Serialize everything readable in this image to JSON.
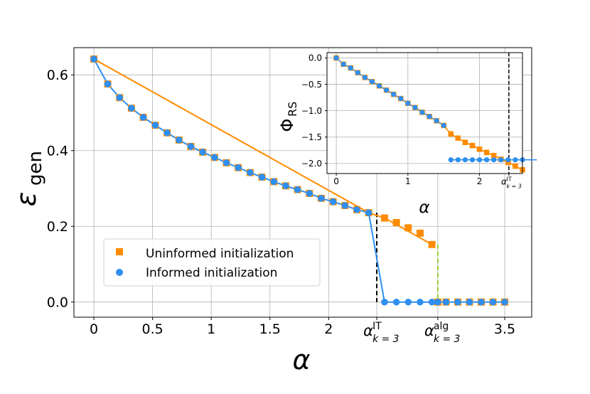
{
  "chart_data": [
    {
      "type": "scatter",
      "title": "",
      "xlabel": "α",
      "ylabel": "ε",
      "ylabel_sub": "gen",
      "xlim": [
        -0.17,
        3.73
      ],
      "ylim": [
        -0.04,
        0.672
      ],
      "xticks": [
        {
          "v": 0,
          "label": "0"
        },
        {
          "v": 0.5,
          "label": "0.5"
        },
        {
          "v": 1,
          "label": "1"
        },
        {
          "v": 1.5,
          "label": "1.5"
        },
        {
          "v": 2,
          "label": "2"
        },
        {
          "v": 3.5,
          "label": "3.5"
        }
      ],
      "yticks": [
        {
          "v": 0,
          "label": "0.0"
        },
        {
          "v": 0.2,
          "label": "0.2"
        },
        {
          "v": 0.4,
          "label": "0.4"
        },
        {
          "v": 0.6,
          "label": "0.6"
        }
      ],
      "grid": true,
      "legend_position": "lower-left",
      "special_ticks": [
        {
          "v": 2.41,
          "base": "α",
          "sup": "IT",
          "sub": "k = 3"
        },
        {
          "v": 2.93,
          "base": "α",
          "sup": "alg",
          "sub": "k = 3"
        }
      ],
      "vlines": [
        {
          "x": 2.41,
          "y_from": 0,
          "y_to": 0.236,
          "color": "#000000",
          "style": "dashed"
        },
        {
          "x": 2.93,
          "y_from": 0,
          "y_to": 0.152,
          "color": "#9acd32",
          "style": "dashed"
        }
      ],
      "series": [
        {
          "name": "Uninformed initialization",
          "marker": "square",
          "color": "#ff8c00",
          "x": [
            0,
            0.118,
            0.219,
            0.32,
            0.421,
            0.523,
            0.624,
            0.725,
            0.826,
            0.927,
            1.028,
            1.129,
            1.23,
            1.331,
            1.432,
            1.533,
            1.634,
            1.735,
            1.836,
            1.937,
            2.038,
            2.139,
            2.24,
            2.341,
            2.41,
            2.476,
            2.577,
            2.678,
            2.779,
            2.88,
            2.93,
            3.0,
            3.1,
            3.2,
            3.3,
            3.4,
            3.5
          ],
          "y": [
            0.642,
            0.576,
            0.54,
            0.512,
            0.488,
            0.467,
            0.447,
            0.428,
            0.411,
            0.396,
            0.382,
            0.368,
            0.355,
            0.342,
            0.33,
            0.318,
            0.307,
            0.297,
            0.287,
            0.274,
            0.265,
            0.255,
            0.244,
            0.236,
            null,
            0.222,
            0.21,
            0.196,
            0.182,
            0.152,
            0.0,
            0.0,
            0.0,
            0.0,
            0.0,
            0.0,
            0.0
          ],
          "line": [
            [
              0,
              0.642
            ],
            [
              2.341,
              0.236
            ],
            [
              2.476,
              0.222
            ],
            [
              2.88,
              0.152
            ]
          ]
        },
        {
          "name": "Informed initialization",
          "marker": "circle",
          "color": "#2e8ff0",
          "x": [
            0,
            0.118,
            0.219,
            0.32,
            0.421,
            0.523,
            0.624,
            0.725,
            0.826,
            0.927,
            1.028,
            1.129,
            1.23,
            1.331,
            1.432,
            1.533,
            1.634,
            1.735,
            1.836,
            1.937,
            2.038,
            2.139,
            2.24,
            2.341,
            2.476,
            2.577,
            2.678,
            2.779,
            2.88,
            2.93,
            3.0,
            3.1,
            3.2,
            3.3,
            3.4,
            3.5
          ],
          "y": [
            0.642,
            0.576,
            0.54,
            0.512,
            0.488,
            0.467,
            0.447,
            0.428,
            0.411,
            0.396,
            0.382,
            0.368,
            0.355,
            0.342,
            0.33,
            0.318,
            0.307,
            0.297,
            0.287,
            0.274,
            0.265,
            0.255,
            0.244,
            0.236,
            0.0,
            0.0,
            0.0,
            0.0,
            0.0,
            0.0,
            0.0,
            0.0,
            0.0,
            0.0,
            0.0,
            0.0
          ]
        }
      ]
    },
    {
      "type": "scatter",
      "title": "",
      "inset": true,
      "xlabel": "α",
      "ylabel": "Φ",
      "ylabel_sub": "RS",
      "xlim": [
        -0.13,
        2.6
      ],
      "ylim": [
        -2.19,
        0.1
      ],
      "xticks": [
        {
          "v": 0,
          "label": "0"
        },
        {
          "v": 1,
          "label": "1"
        },
        {
          "v": 2,
          "label": "2"
        }
      ],
      "yticks": [
        {
          "v": 0,
          "label": "0.0"
        },
        {
          "v": -0.5,
          "label": "−0.5"
        },
        {
          "v": -1,
          "label": "−1.0"
        },
        {
          "v": -1.5,
          "label": "−1.5"
        },
        {
          "v": -2,
          "label": "−2.0"
        }
      ],
      "grid": true,
      "special_ticks": [
        {
          "v": 2.41,
          "base": "α",
          "sup": "IT",
          "sub": "k = 3"
        }
      ],
      "vlines": [
        {
          "x": 2.41,
          "color": "#000000",
          "style": "dashed"
        }
      ],
      "series": [
        {
          "name": "Uninformed initialization",
          "marker": "square",
          "color": "#ff8c00",
          "x": [
            0,
            0.1,
            0.2,
            0.3,
            0.4,
            0.5,
            0.6,
            0.7,
            0.8,
            0.9,
            1.0,
            1.1,
            1.2,
            1.3,
            1.4,
            1.5,
            1.6,
            1.7,
            1.8,
            1.9,
            2.0,
            2.1,
            2.2,
            2.3,
            2.4,
            2.5
          ],
          "y": [
            0.0,
            -0.12,
            -0.19,
            -0.28,
            -0.37,
            -0.45,
            -0.53,
            -0.61,
            -0.69,
            -0.77,
            -0.86,
            -0.94,
            -1.03,
            -1.11,
            -1.19,
            -1.28,
            -1.44,
            -1.52,
            -1.6,
            -1.66,
            -1.73,
            -1.79,
            -1.85,
            -1.92,
            -1.98,
            -2.05
          ],
          "extra": {
            "x": [
              2.6
            ],
            "y": [
              -2.12
            ]
          }
        },
        {
          "name": "Informed initialization",
          "marker": "circle",
          "color": "#2e8ff0",
          "x": [
            0,
            0.1,
            0.2,
            0.3,
            0.4,
            0.5,
            0.6,
            0.7,
            0.8,
            0.9,
            1.0,
            1.1,
            1.2,
            1.3,
            1.4,
            1.5,
            1.6,
            1.7,
            1.8,
            1.9,
            2.0,
            2.1,
            2.2,
            2.3,
            2.4,
            2.5,
            2.6,
            2.7,
            2.8
          ],
          "y": [
            0.0,
            -0.12,
            -0.19,
            -0.28,
            -0.37,
            -0.45,
            -0.53,
            -0.61,
            -0.69,
            -0.77,
            -0.86,
            -0.94,
            -1.03,
            -1.11,
            -1.19,
            -1.28,
            -1.93,
            -1.93,
            -1.93,
            -1.93,
            -1.93,
            -1.93,
            -1.93,
            -1.93,
            -1.93,
            -1.93,
            -1.93,
            -1.93,
            -1.93
          ]
        }
      ]
    }
  ]
}
